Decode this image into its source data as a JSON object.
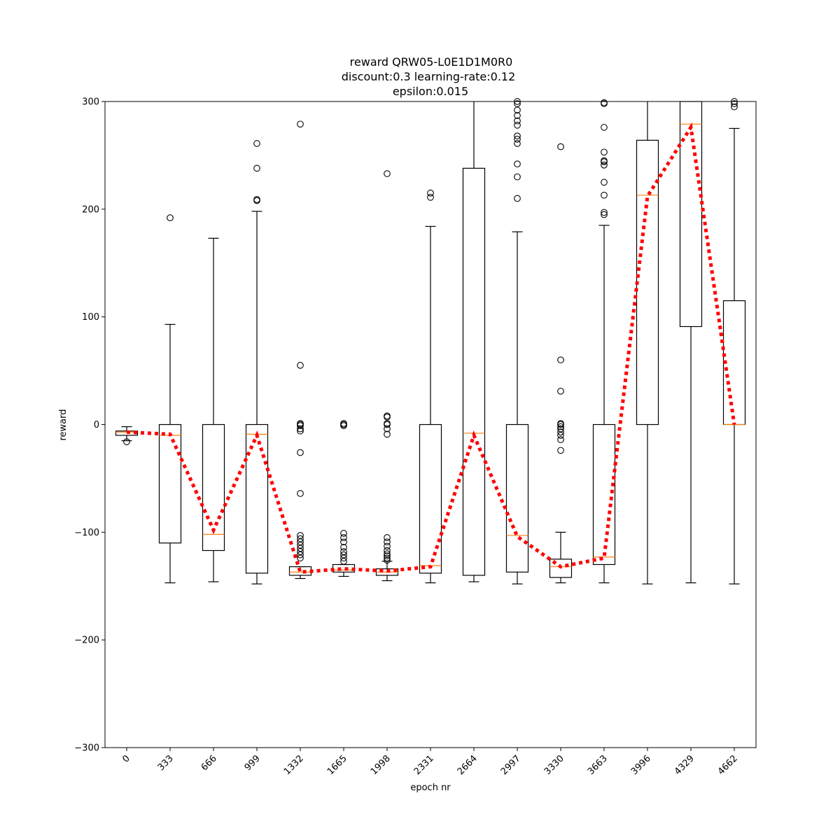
{
  "chart_data": {
    "type": "box",
    "title": [
      "reward QRW05-L0E1D1M0R0",
      "discount:0.3 learning-rate:0.12",
      "epsilon:0.015"
    ],
    "xlabel": "epoch nr",
    "ylabel": "reward",
    "ylim": [
      -300,
      300
    ],
    "yticks": [
      -300,
      -200,
      -100,
      0,
      100,
      200,
      300
    ],
    "grid": false,
    "categories": [
      "0",
      "333",
      "666",
      "999",
      "1332",
      "1665",
      "1998",
      "2331",
      "2664",
      "2997",
      "3330",
      "3663",
      "3996",
      "4329",
      "4662"
    ],
    "boxes": [
      {
        "whislo": -15,
        "q1": -10,
        "med": -7,
        "q3": -6,
        "whishi": -2,
        "fliers": [
          -16
        ]
      },
      {
        "whislo": -147,
        "q1": -110,
        "med": -10,
        "q3": 0,
        "whishi": 93,
        "fliers": [
          192
        ]
      },
      {
        "whislo": -146,
        "q1": -117,
        "med": -102,
        "q3": 0,
        "whishi": 173,
        "fliers": []
      },
      {
        "whislo": -148,
        "q1": -138,
        "med": -9,
        "q3": 0,
        "whishi": 198,
        "fliers": [
          261,
          238,
          209,
          208
        ]
      },
      {
        "whislo": -143,
        "q1": -140,
        "med": -137,
        "q3": -132,
        "whishi": -132,
        "fliers": [
          279,
          55,
          -1,
          0,
          1,
          -4,
          -6,
          -26,
          -64,
          -103,
          -106,
          -109,
          -112,
          -115,
          -118,
          -121,
          -124
        ]
      },
      {
        "whislo": -141,
        "q1": -137,
        "med": -135,
        "q3": -130,
        "whishi": -130,
        "fliers": [
          0,
          1,
          -1,
          -101,
          -105,
          -109,
          -114,
          -118,
          -121,
          -124,
          -127
        ]
      },
      {
        "whislo": -145,
        "q1": -140,
        "med": -137,
        "q3": -134,
        "whishi": -127,
        "fliers": [
          233,
          8,
          7,
          1,
          0,
          -4,
          -9,
          -105,
          -109,
          -113,
          -117,
          -120,
          -122,
          -124,
          -126
        ]
      },
      {
        "whislo": -147,
        "q1": -138,
        "med": -131,
        "q3": 0,
        "whishi": 184,
        "fliers": [
          215,
          211
        ]
      },
      {
        "whislo": -146,
        "q1": -140,
        "med": -8,
        "q3": 238,
        "whishi": 300,
        "fliers": []
      },
      {
        "whislo": -148,
        "q1": -137,
        "med": -103,
        "q3": 0,
        "whishi": 179,
        "fliers": [
          300,
          298,
          292,
          287,
          282,
          278,
          268,
          265,
          261,
          242,
          230,
          210
        ]
      },
      {
        "whislo": -147,
        "q1": -142,
        "med": -132,
        "q3": -125,
        "whishi": -100,
        "fliers": [
          258,
          60,
          31,
          1,
          0,
          -2,
          -4,
          -7,
          -10,
          -14,
          -24
        ]
      },
      {
        "whislo": -147,
        "q1": -130,
        "med": -123,
        "q3": 0,
        "whishi": 185,
        "fliers": [
          299,
          298,
          276,
          253,
          245,
          244,
          241,
          225,
          213,
          197,
          195
        ]
      },
      {
        "whislo": -148,
        "q1": 0,
        "med": 213,
        "q3": 264,
        "whishi": 300,
        "fliers": []
      },
      {
        "whislo": -147,
        "q1": 91,
        "med": 279,
        "q3": 300,
        "whishi": 300,
        "fliers": []
      },
      {
        "whislo": -148,
        "q1": 0,
        "med": 0,
        "q3": 115,
        "whishi": 275,
        "fliers": [
          300,
          298,
          295
        ]
      }
    ],
    "series": [
      {
        "type": "line",
        "style": "dotted",
        "color": "#ff0000",
        "values": [
          -7,
          -9,
          -98,
          -10,
          -137,
          -134,
          -136,
          -132,
          -10,
          -104,
          -132,
          -124,
          212,
          276,
          0
        ]
      }
    ],
    "colors": {
      "box": "#000000",
      "median": "#ff7f0e",
      "trend": "#ff0000"
    }
  }
}
